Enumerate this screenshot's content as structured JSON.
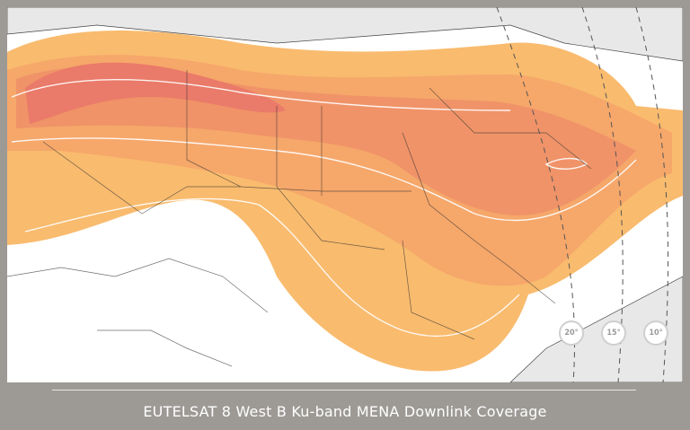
{
  "caption": "EUTELSAT 8 West B Ku-band MENA Downlink Coverage",
  "elevation_labels": [
    "20°",
    "15°",
    "10°"
  ],
  "colors": {
    "frame": "#9d9a96",
    "outer": "#f9b86a",
    "mid": "#f5a068",
    "inner": "#ee8a66",
    "peak": "#e9746a"
  }
}
